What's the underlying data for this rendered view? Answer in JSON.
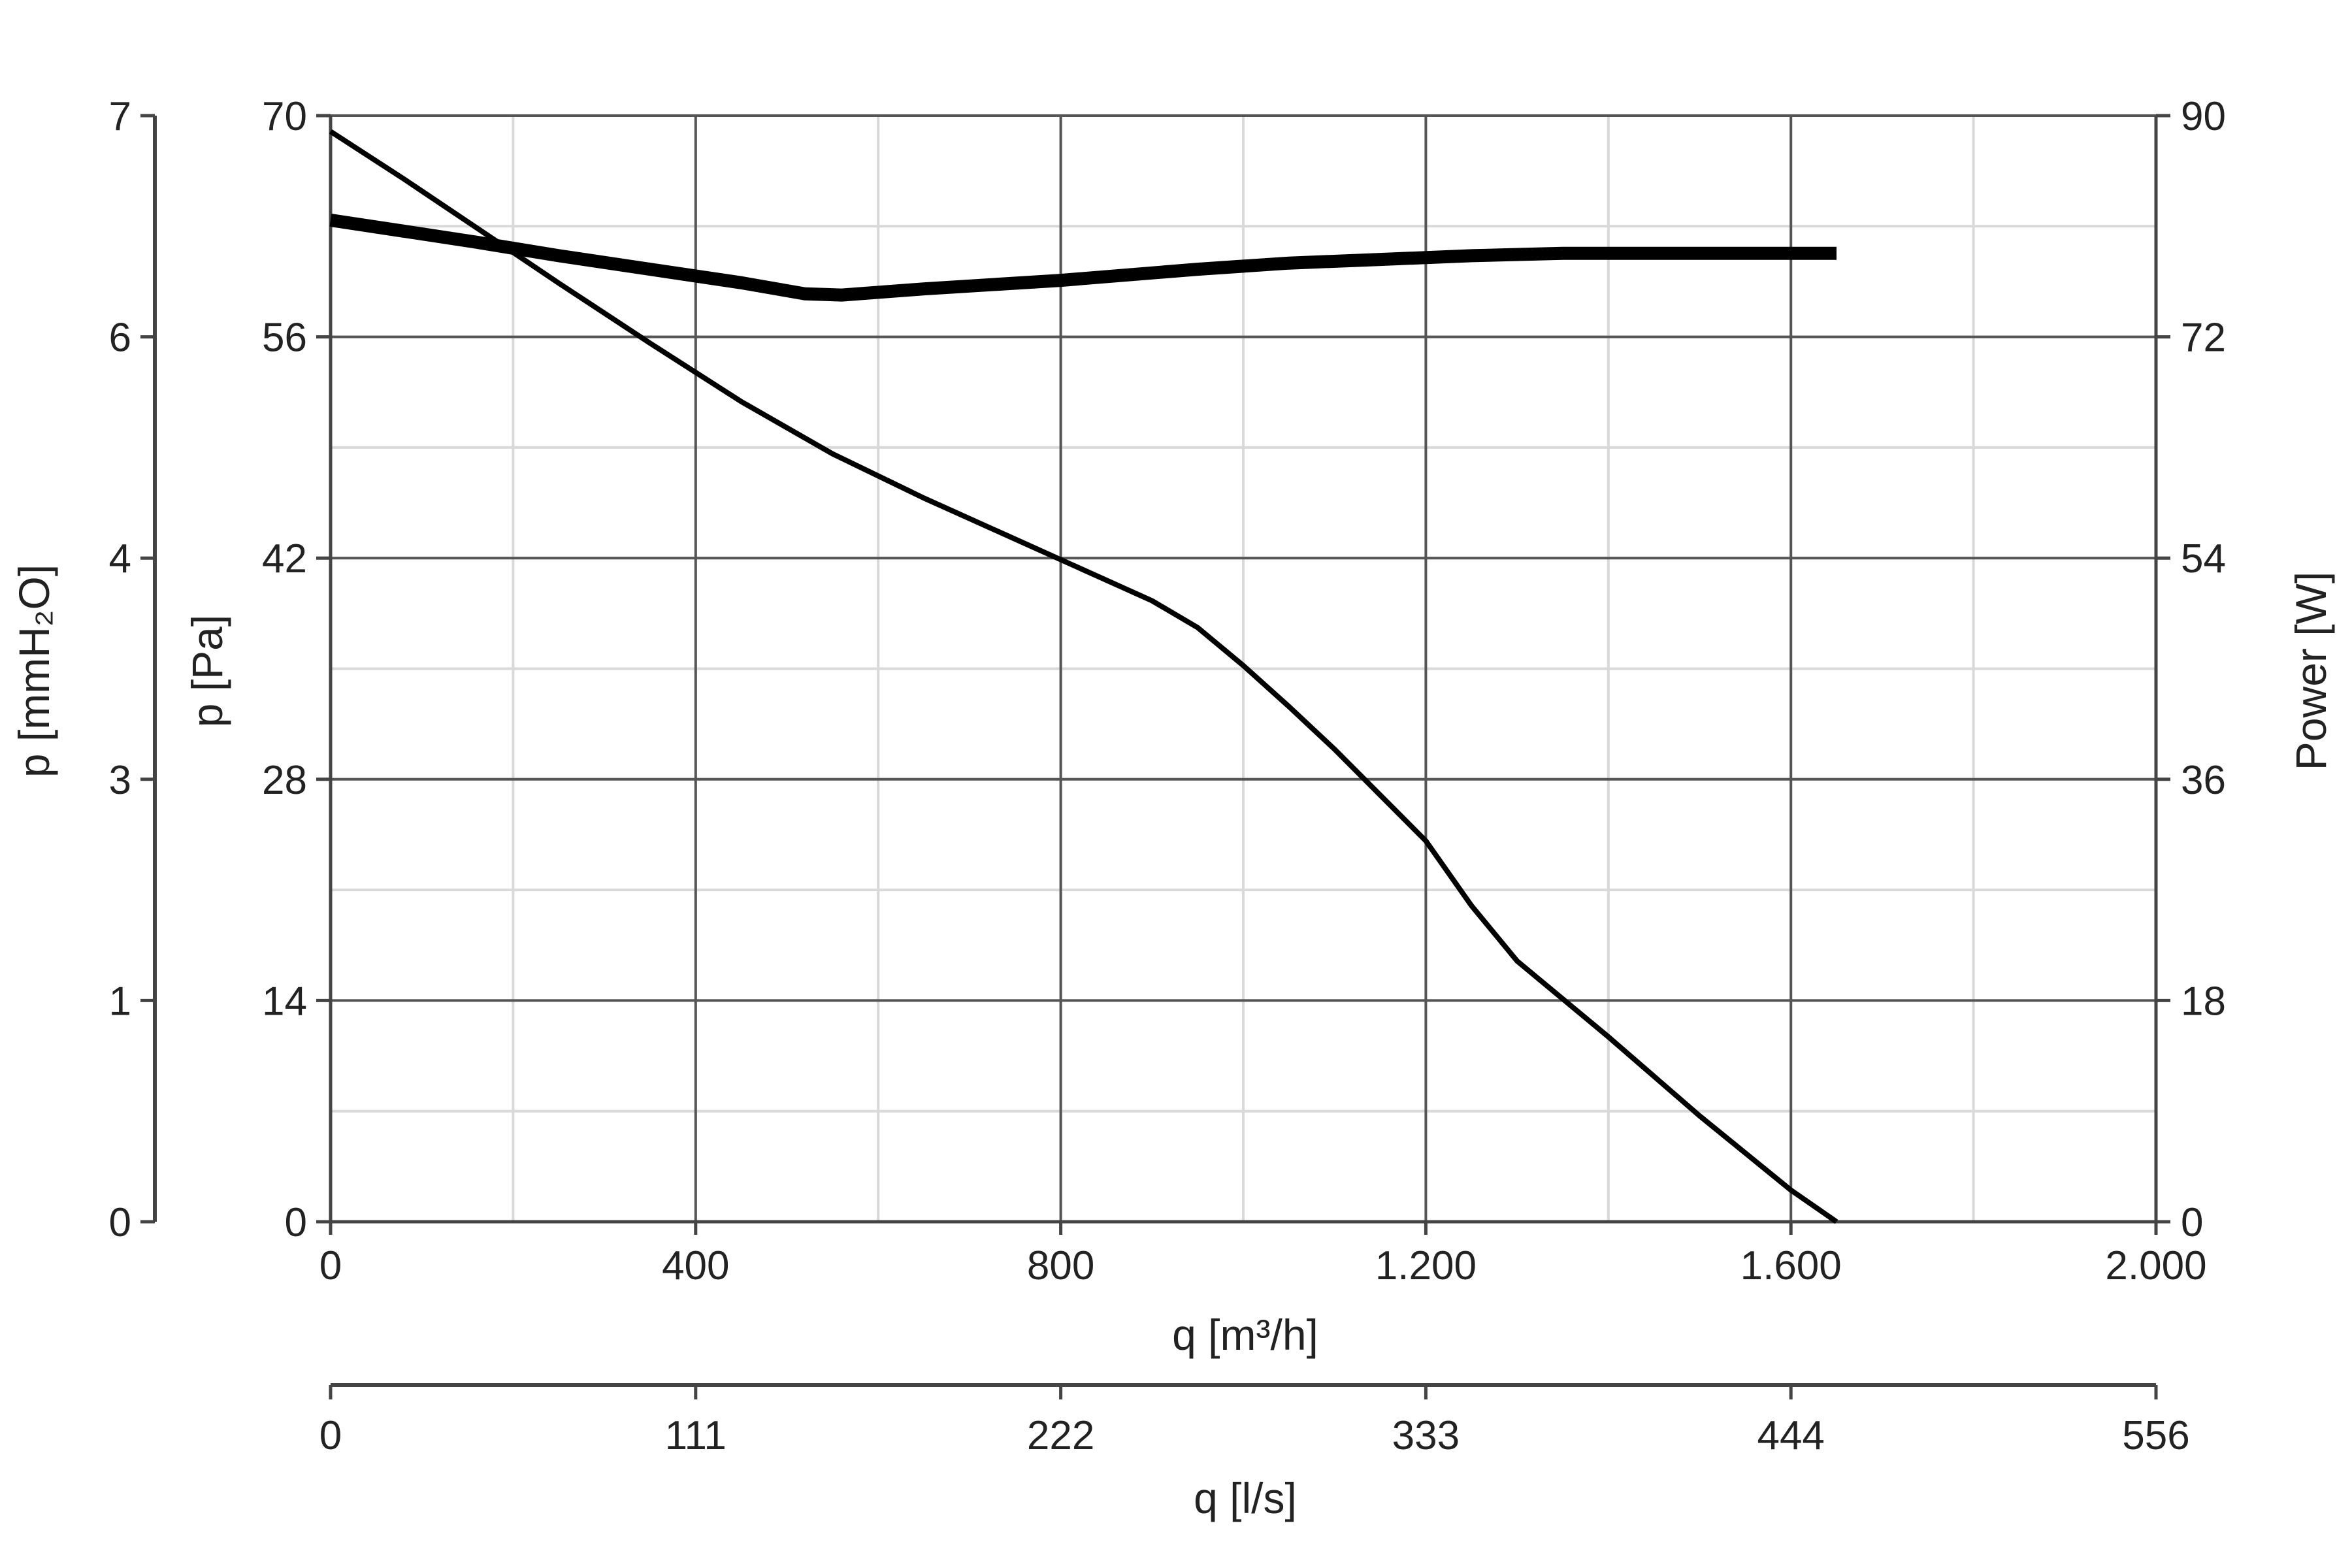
{
  "chart_data": {
    "type": "line",
    "x": {
      "label": "q [m³/h]",
      "range": [
        0,
        2000
      ],
      "ticks": [
        0,
        400,
        800,
        1200,
        1600,
        2000
      ],
      "tick_labels": [
        "0",
        "400",
        "800",
        "1.200",
        "1.600",
        "2.000"
      ],
      "minor_step": 200
    },
    "x2": {
      "label": "q [l/s]",
      "range": [
        0,
        556
      ],
      "tick_labels": [
        "0",
        "111",
        "222",
        "333",
        "444",
        "556"
      ]
    },
    "y": {
      "label": "p [Pa]",
      "range": [
        0,
        70
      ],
      "ticks": [
        0,
        14,
        28,
        42,
        56,
        70
      ],
      "tick_labels": [
        "0",
        "14",
        "28",
        "42",
        "56",
        "70"
      ],
      "minor_step": 7
    },
    "y_outer": {
      "label": "p [mmH₂O]",
      "tick_labels": [
        "0",
        "1",
        "3",
        "4",
        "6",
        "7"
      ]
    },
    "y2": {
      "label": "Power [W]",
      "range": [
        0,
        90
      ],
      "ticks": [
        0,
        18,
        36,
        54,
        72,
        90
      ],
      "tick_labels": [
        "0",
        "18",
        "36",
        "54",
        "72",
        "90"
      ]
    },
    "grid": true,
    "series": [
      {
        "axis": "y",
        "points": [
          [
            0,
            69
          ],
          [
            80,
            66
          ],
          [
            160,
            62.9
          ],
          [
            250,
            59.4
          ],
          [
            350,
            55.6
          ],
          [
            450,
            51.9
          ],
          [
            550,
            48.6
          ],
          [
            650,
            45.8
          ],
          [
            750,
            43.2
          ],
          [
            800,
            41.9
          ],
          [
            900,
            39.3
          ],
          [
            950,
            37.6
          ],
          [
            1000,
            35.2
          ],
          [
            1050,
            32.6
          ],
          [
            1100,
            29.9
          ],
          [
            1150,
            27
          ],
          [
            1200,
            24.1
          ],
          [
            1250,
            20
          ],
          [
            1300,
            16.5
          ],
          [
            1400,
            11.7
          ],
          [
            1500,
            6.7
          ],
          [
            1600,
            2
          ],
          [
            1650,
            0
          ]
        ],
        "color": "#000000"
      },
      {
        "axis": "y2",
        "points": [
          [
            0,
            81.5
          ],
          [
            80,
            80.6
          ],
          [
            160,
            79.7
          ],
          [
            250,
            78.6
          ],
          [
            350,
            77.5
          ],
          [
            450,
            76.4
          ],
          [
            520,
            75.5
          ],
          [
            560,
            75.4
          ],
          [
            650,
            75.9
          ],
          [
            800,
            76.6
          ],
          [
            950,
            77.5
          ],
          [
            1050,
            78
          ],
          [
            1150,
            78.3
          ],
          [
            1250,
            78.6
          ],
          [
            1350,
            78.8
          ],
          [
            1500,
            78.8
          ],
          [
            1650,
            78.8
          ]
        ],
        "color": "#000000"
      }
    ]
  }
}
